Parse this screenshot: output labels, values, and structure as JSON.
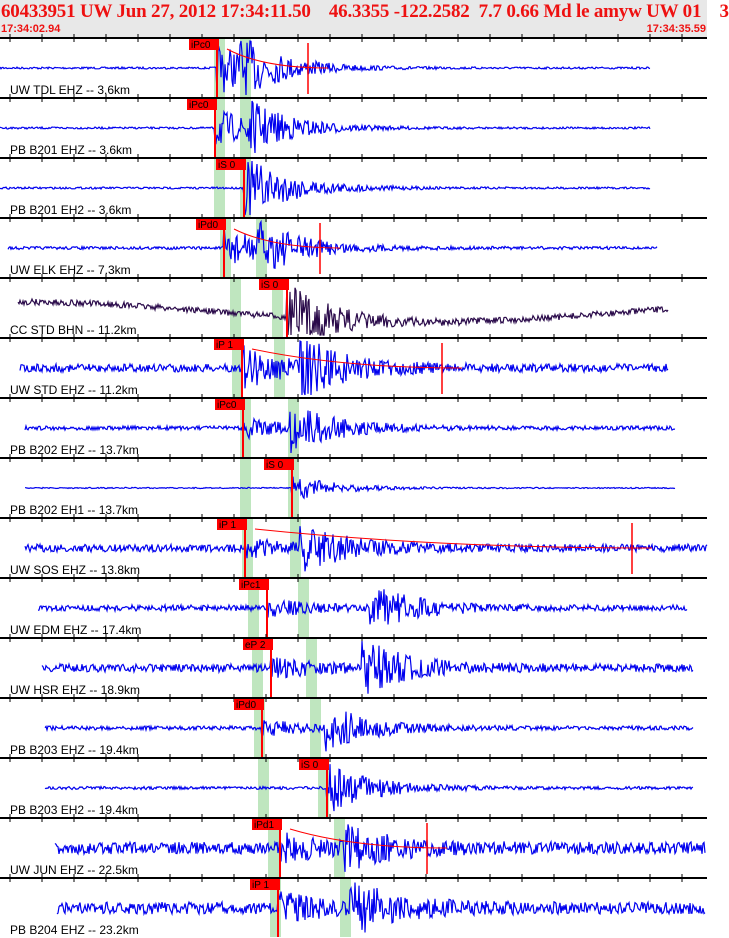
{
  "header": {
    "title": "60433951 UW Jun 27, 2012 17:34:11.50    46.3355 -122.2582  7.7 0.66 Md le amyw UW 01    3",
    "start_time": "17:34:02.94",
    "end_time": "17:34:35.59"
  },
  "colors": {
    "trace": "#0000ee",
    "trace_bhn": "#2a0a4a",
    "pick": "#ff0000",
    "band": "#bfe6bf",
    "header_text": "#ee1111"
  },
  "chart_data": {
    "type": "line",
    "title": "60433951 UW Jun 27, 2012 17:34:11.50    46.3355 -122.2582  7.7 0.66 Md le amyw UW 01    3",
    "x_range": [
      "17:34:02.94",
      "17:34:35.59"
    ],
    "traces": [
      {
        "label": "UW TDL EHZ -- 3.6km",
        "pick": "iPc0"
      },
      {
        "label": "PB B201 EHZ -- 3.6km",
        "pick": "iPc0"
      },
      {
        "label": "PB B201 EH2 -- 3.6km",
        "pick": "iS 0"
      },
      {
        "label": "UW ELK EHZ -- 7.3km",
        "pick": "iPd0"
      },
      {
        "label": "CC STD BHN -- 11.2km",
        "pick": "iS 0"
      },
      {
        "label": "UW STD EHZ -- 11.2km",
        "pick": "iP 1"
      },
      {
        "label": "PB B202 EHZ -- 13.7km",
        "pick": "iPc0"
      },
      {
        "label": "PB B202 EH1 -- 13.7km",
        "pick": "iS 0"
      },
      {
        "label": "UW SOS EHZ -- 13.8km",
        "pick": "iP 1"
      },
      {
        "label": "UW EDM EHZ -- 17.4km",
        "pick": "iPc1"
      },
      {
        "label": "UW HSR EHZ -- 18.9km",
        "pick": "eP 2"
      },
      {
        "label": "PB B203 EHZ -- 19.4km",
        "pick": "iPd0"
      },
      {
        "label": "PB B203 EH2 -- 19.4km",
        "pick": "iS 0"
      },
      {
        "label": "UW JUN EHZ -- 22.5km",
        "pick": "iPd1"
      },
      {
        "label": "PB B204 EHZ -- 23.2km",
        "pick": "iP 1"
      }
    ]
  }
}
